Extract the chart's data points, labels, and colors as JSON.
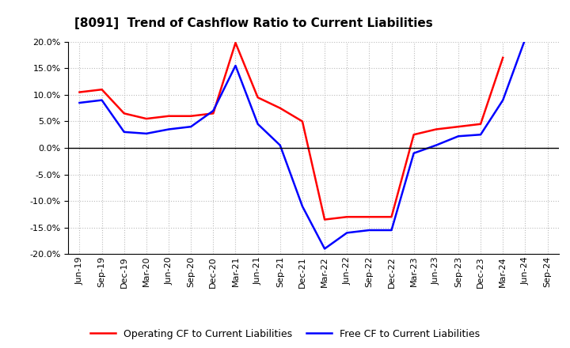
{
  "title": "[8091]  Trend of Cashflow Ratio to Current Liabilities",
  "x_labels": [
    "Jun-19",
    "Sep-19",
    "Dec-19",
    "Mar-20",
    "Jun-20",
    "Sep-20",
    "Dec-20",
    "Mar-21",
    "Jun-21",
    "Sep-21",
    "Dec-21",
    "Mar-22",
    "Jun-22",
    "Sep-22",
    "Dec-22",
    "Mar-23",
    "Jun-23",
    "Sep-23",
    "Dec-23",
    "Mar-24",
    "Jun-24",
    "Sep-24"
  ],
  "operating_cf": [
    10.5,
    11.0,
    6.5,
    5.5,
    6.0,
    6.0,
    6.5,
    19.8,
    9.5,
    7.5,
    5.0,
    -13.5,
    -13.0,
    -13.0,
    -13.0,
    2.5,
    3.5,
    4.0,
    4.5,
    17.0,
    null,
    null
  ],
  "free_cf": [
    8.5,
    9.0,
    3.0,
    2.7,
    3.5,
    4.0,
    7.0,
    15.5,
    4.5,
    0.5,
    -11.0,
    -19.0,
    -16.0,
    -15.5,
    -15.5,
    -1.0,
    0.5,
    2.2,
    2.5,
    9.0,
    20.5,
    null
  ],
  "operating_color": "#ff0000",
  "free_color": "#0000ff",
  "background_color": "#ffffff",
  "plot_bg_color": "#ffffff",
  "grid_color": "#aaaaaa",
  "ylim": [
    -20.0,
    20.0
  ],
  "yticks": [
    -20,
    -15,
    -10,
    -5,
    0,
    5,
    10,
    15,
    20
  ],
  "legend_labels": [
    "Operating CF to Current Liabilities",
    "Free CF to Current Liabilities"
  ],
  "title_fontsize": 11,
  "axis_fontsize": 8,
  "legend_fontsize": 9,
  "line_width": 1.8
}
